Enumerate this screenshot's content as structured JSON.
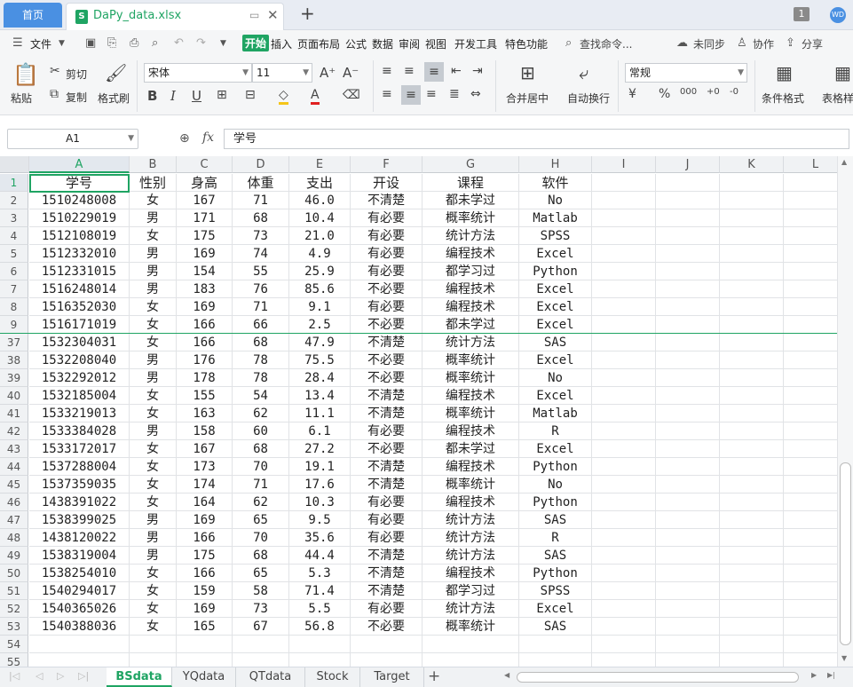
{
  "titlebar": {
    "home_label": "首页",
    "file_name": "DaPy_data.xlsx",
    "new_tab_symbol": "+",
    "page_badge": "1"
  },
  "menu": {
    "file": "文件",
    "items": [
      "开始",
      "插入",
      "页面布局",
      "公式",
      "数据",
      "审阅",
      "视图",
      "开发工具",
      "特色功能"
    ],
    "active": "开始",
    "search": "查找命令...",
    "sync": "未同步",
    "collab": "协作",
    "share": "分享"
  },
  "ribbon": {
    "paste": "粘贴",
    "cut": "剪切",
    "copy": "复制",
    "format_painter": "格式刷",
    "font_name": "宋体",
    "font_size": "11",
    "number_format": "常规",
    "merge_center": "合并居中",
    "wrap_text": "自动换行",
    "cond_format": "条件格式",
    "table_style": "表格样"
  },
  "formula": {
    "name_box": "A1",
    "fx": "fx",
    "value": "学号"
  },
  "columns": [
    "A",
    "B",
    "C",
    "D",
    "E",
    "F",
    "G",
    "H",
    "I",
    "J",
    "K",
    "L"
  ],
  "headers": [
    "学号",
    "性别",
    "身高",
    "体重",
    "支出",
    "开设",
    "课程",
    "软件"
  ],
  "rows": [
    {
      "n": "2",
      "v": [
        "1510248008",
        "女",
        "167",
        "71",
        "46.0",
        "不清楚",
        "都未学过",
        "No"
      ]
    },
    {
      "n": "3",
      "v": [
        "1510229019",
        "男",
        "171",
        "68",
        "10.4",
        "有必要",
        "概率统计",
        "Matlab"
      ]
    },
    {
      "n": "4",
      "v": [
        "1512108019",
        "女",
        "175",
        "73",
        "21.0",
        "有必要",
        "统计方法",
        "SPSS"
      ]
    },
    {
      "n": "5",
      "v": [
        "1512332010",
        "男",
        "169",
        "74",
        "4.9",
        "有必要",
        "编程技术",
        "Excel"
      ]
    },
    {
      "n": "6",
      "v": [
        "1512331015",
        "男",
        "154",
        "55",
        "25.9",
        "有必要",
        "都学习过",
        "Python"
      ]
    },
    {
      "n": "7",
      "v": [
        "1516248014",
        "男",
        "183",
        "76",
        "85.6",
        "不必要",
        "编程技术",
        "Excel"
      ]
    },
    {
      "n": "8",
      "v": [
        "1516352030",
        "女",
        "169",
        "71",
        "9.1",
        "有必要",
        "编程技术",
        "Excel"
      ]
    },
    {
      "n": "9",
      "v": [
        "1516171019",
        "女",
        "166",
        "66",
        "2.5",
        "不必要",
        "都未学过",
        "Excel"
      ]
    },
    {
      "n": "37",
      "v": [
        "1532304031",
        "女",
        "166",
        "68",
        "47.9",
        "不清楚",
        "统计方法",
        "SAS"
      ]
    },
    {
      "n": "38",
      "v": [
        "1532208040",
        "男",
        "176",
        "78",
        "75.5",
        "不必要",
        "概率统计",
        "Excel"
      ]
    },
    {
      "n": "39",
      "v": [
        "1532292012",
        "男",
        "178",
        "78",
        "28.4",
        "不必要",
        "概率统计",
        "No"
      ]
    },
    {
      "n": "40",
      "v": [
        "1532185004",
        "女",
        "155",
        "54",
        "13.4",
        "不清楚",
        "编程技术",
        "Excel"
      ]
    },
    {
      "n": "41",
      "v": [
        "1533219013",
        "女",
        "163",
        "62",
        "11.1",
        "不清楚",
        "概率统计",
        "Matlab"
      ]
    },
    {
      "n": "42",
      "v": [
        "1533384028",
        "男",
        "158",
        "60",
        "6.1",
        "有必要",
        "编程技术",
        "R"
      ]
    },
    {
      "n": "43",
      "v": [
        "1533172017",
        "女",
        "167",
        "68",
        "27.2",
        "不必要",
        "都未学过",
        "Excel"
      ]
    },
    {
      "n": "44",
      "v": [
        "1537288004",
        "女",
        "173",
        "70",
        "19.1",
        "不清楚",
        "编程技术",
        "Python"
      ]
    },
    {
      "n": "45",
      "v": [
        "1537359035",
        "女",
        "174",
        "71",
        "17.6",
        "不清楚",
        "概率统计",
        "No"
      ]
    },
    {
      "n": "46",
      "v": [
        "1438391022",
        "女",
        "164",
        "62",
        "10.3",
        "有必要",
        "编程技术",
        "Python"
      ]
    },
    {
      "n": "47",
      "v": [
        "1538399025",
        "男",
        "169",
        "65",
        "9.5",
        "有必要",
        "统计方法",
        "SAS"
      ]
    },
    {
      "n": "48",
      "v": [
        "1438120022",
        "男",
        "166",
        "70",
        "35.6",
        "有必要",
        "统计方法",
        "R"
      ]
    },
    {
      "n": "49",
      "v": [
        "1538319004",
        "男",
        "175",
        "68",
        "44.4",
        "不清楚",
        "统计方法",
        "SAS"
      ]
    },
    {
      "n": "50",
      "v": [
        "1538254010",
        "女",
        "166",
        "65",
        "5.3",
        "不清楚",
        "编程技术",
        "Python"
      ]
    },
    {
      "n": "51",
      "v": [
        "1540294017",
        "女",
        "159",
        "58",
        "71.4",
        "不清楚",
        "都学习过",
        "SPSS"
      ]
    },
    {
      "n": "52",
      "v": [
        "1540365026",
        "女",
        "169",
        "73",
        "5.5",
        "有必要",
        "统计方法",
        "Excel"
      ]
    },
    {
      "n": "53",
      "v": [
        "1540388036",
        "女",
        "165",
        "67",
        "56.8",
        "不必要",
        "概率统计",
        "SAS"
      ]
    },
    {
      "n": "54",
      "v": [
        "",
        "",
        "",
        "",
        "",
        "",
        "",
        ""
      ]
    },
    {
      "n": "55",
      "v": [
        "",
        "",
        "",
        "",
        "",
        "",
        "",
        ""
      ]
    }
  ],
  "header_row_number": "1",
  "sheets": [
    "BSdata",
    "YQdata",
    "QTdata",
    "Stock",
    "Target"
  ],
  "active_sheet": "BSdata",
  "add_sheet_symbol": "+",
  "colors": {
    "accent": "#1fa463",
    "tab_blue": "#4a90e2"
  }
}
